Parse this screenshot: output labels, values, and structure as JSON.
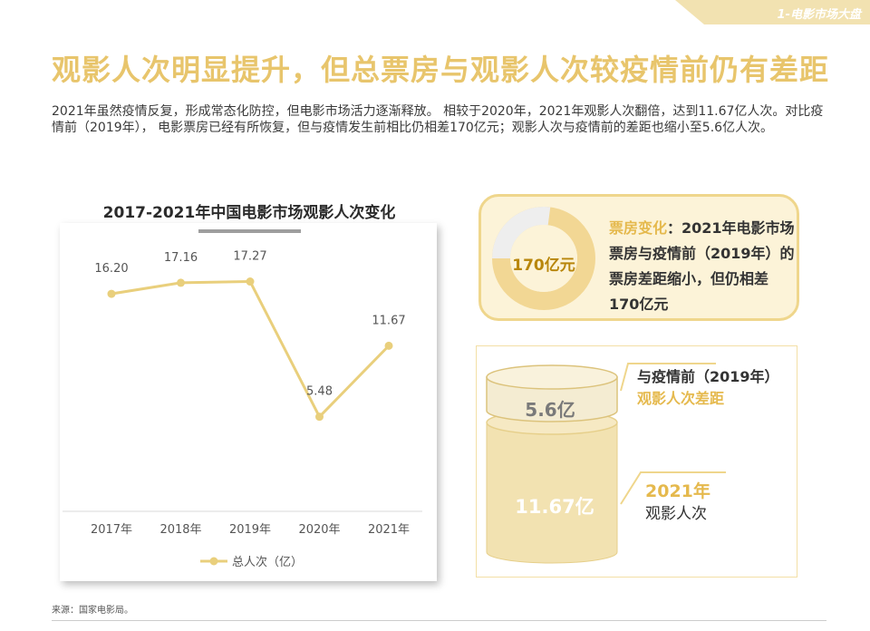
{
  "header": {
    "section_tab": "1-电影市场大盘"
  },
  "title": "观影人次明显提升，但总票房与观影人次较疫情前仍有差距",
  "intro": "2021年虽然疫情反复，形成常态化防控，但电影市场活力逐渐释放。 相较于2020年，2021年观影人次翻倍，达到11.67亿人次。对比疫情前（2019年）， 电影票房已经有所恢复，但与疫情发生前相比仍相差170亿元；观影人次与疫情前的差距也缩小至5.6亿人次。",
  "chart_data": {
    "type": "line",
    "title": "2017-2021年中国电影市场观影人次变化",
    "categories": [
      "2017年",
      "2018年",
      "2019年",
      "2020年",
      "2021年"
    ],
    "series": [
      {
        "name": "总人次（亿）",
        "values": [
          16.2,
          17.16,
          17.27,
          5.48,
          11.67
        ]
      }
    ],
    "value_labels": [
      "16.20",
      "17.16",
      "17.27",
      "5.48",
      "11.67"
    ],
    "ylim": [
      0,
      20
    ],
    "grid": false,
    "legend_position": "bottom",
    "xlabel": "",
    "ylabel": ""
  },
  "box_office": {
    "gap_label": "170亿元",
    "gap_fraction": 0.27,
    "highlight": "票房变化",
    "text": "：2021年电影市场票房与疫情前（2019年）的票房差距缩小，但仍相差170亿元"
  },
  "viewers": {
    "gap_value_label": "5.6亿",
    "total_value_label": "11.67亿",
    "gap_note_line1": "与疫情前（2019年）",
    "gap_note_line2": "观影人次差距",
    "year_note_line1": "2021年",
    "year_note_line2": "观影人次"
  },
  "colors": {
    "accent": "#e8c56c",
    "line": "#e9cf7c",
    "donut_gap": "#eeeeee",
    "donut_fill": "#f2d794"
  },
  "source": "来源：国家电影局。"
}
